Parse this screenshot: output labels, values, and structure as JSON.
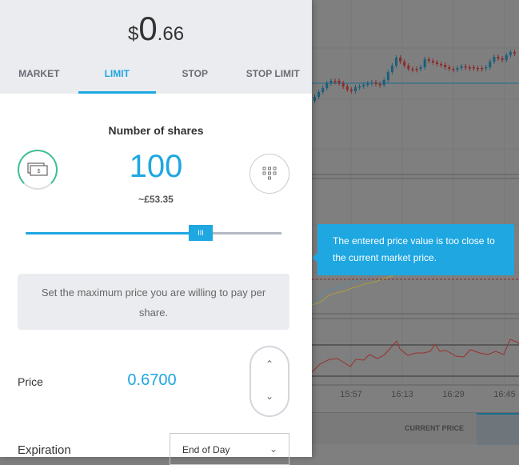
{
  "header": {
    "currency": "$",
    "price_int": "0",
    "price_dec": ".66"
  },
  "tabs": [
    {
      "label": "MARKET"
    },
    {
      "label": "LIMIT",
      "active": true
    },
    {
      "label": "STOP"
    },
    {
      "label": "STOP LIMIT"
    }
  ],
  "shares": {
    "title": "Number of shares",
    "quantity": "100",
    "approx_cost": "~£53.35",
    "slider_fraction": 0.69,
    "slider_thumb_label": "III"
  },
  "hint": "Set the maximum price you are willing to pay per share.",
  "price": {
    "label": "Price",
    "value": "0.6700"
  },
  "expiration": {
    "label": "Expiration",
    "selected": "End of Day"
  },
  "tooltip": "The entered price value is too close to the current market price.",
  "chart": {
    "time_labels": [
      "15:57",
      "16:13",
      "16:29",
      "16:45"
    ],
    "current_price_label": "CURRENT PRICE",
    "up_color": "#1a5f7a",
    "down_color": "#8b2a2a"
  },
  "icons": {
    "cash": "cash-icon",
    "keypad": "keypad-icon",
    "up": "chevron-up-icon",
    "down": "chevron-down-icon"
  }
}
